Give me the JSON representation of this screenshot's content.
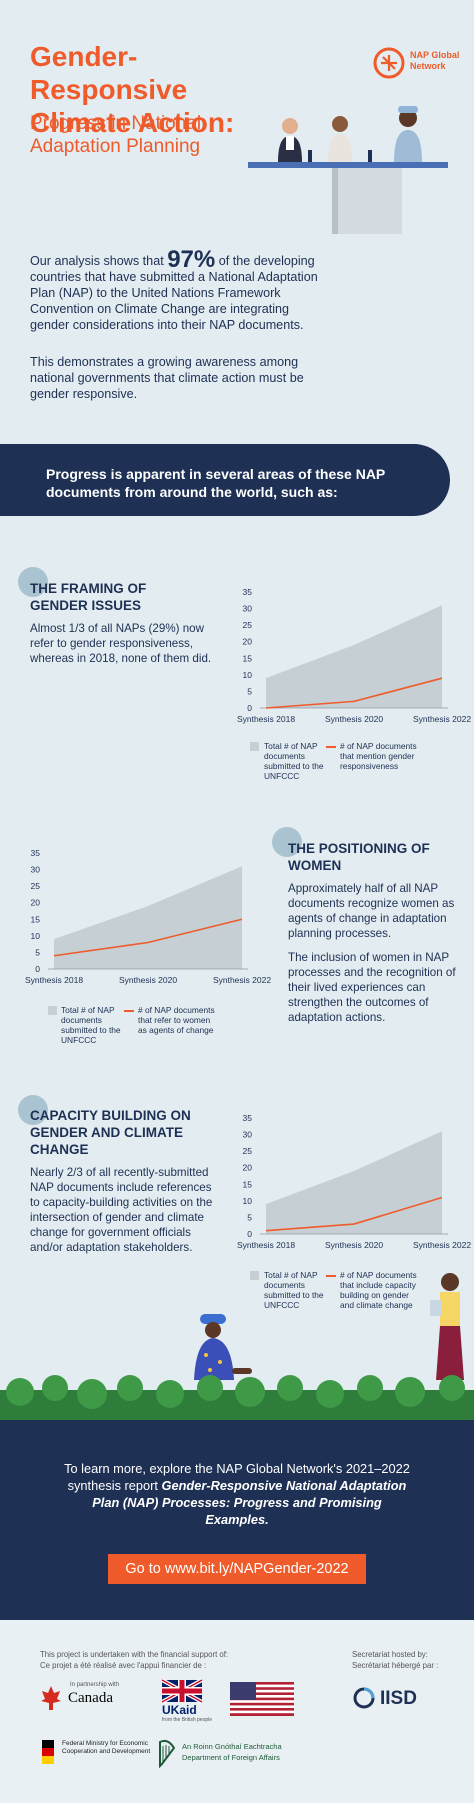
{
  "header": {
    "title": "Gender-Responsive Climate Action:",
    "subtitle": "Progress in National Adaptation Planning",
    "logo_text": "NAP Global Network"
  },
  "intro": {
    "pre": "Our analysis shows that",
    "stat": "97%",
    "post": "of the developing countries that have submitted a National Adaptation Plan (NAP) to the United Nations Framework Convention on Climate Change are integrating gender considerations into their NAP documents.",
    "para2": "This demonstrates a growing awareness among national governments that climate action must be gender responsive."
  },
  "banner": {
    "text": "Progress is apparent in several areas of these NAP documents from around the world, such as:"
  },
  "sections": [
    {
      "title": "THE FRAMING OF GENDER ISSUES",
      "body": "Almost 1/3 of all NAPs (29%) now refer to gender responsiveness, whereas in 2018, none of them did.",
      "body2": ""
    },
    {
      "title": "THE POSITIONING OF WOMEN",
      "body": "Approximately half of all NAP documents recognize women as agents of change in adaptation planning processes.",
      "body2": "The inclusion of women in NAP processes and the recognition of their lived experiences can strengthen the outcomes of adaptation actions."
    },
    {
      "title": "CAPACITY BUILDING ON GENDER AND CLIMATE CHANGE",
      "body": "Nearly 2/3 of all recently-submitted NAP documents include references to capacity-building activities on the intersection of gender and climate change for government officials and/or adaptation stakeholders.",
      "body2": ""
    }
  ],
  "chart_data": [
    {
      "type": "area",
      "categories": [
        "Synthesis 2018",
        "Synthesis 2020",
        "Synthesis 2022"
      ],
      "ylim": [
        0,
        35
      ],
      "yticks": [
        "0",
        "5",
        "10",
        "15",
        "20",
        "25",
        "30",
        "35"
      ],
      "series": [
        {
          "name": "Total # of NAP documents submitted to the UNFCCC",
          "values": [
            9,
            19,
            31
          ],
          "color": "#c6cfd3"
        },
        {
          "name": "# of NAP documents that mention gender responsiveness",
          "values": [
            0,
            2,
            9
          ],
          "color": "#ef5b2b"
        }
      ]
    },
    {
      "type": "area",
      "categories": [
        "Synthesis 2018",
        "Synthesis 2020",
        "Synthesis 2022"
      ],
      "ylim": [
        0,
        35
      ],
      "yticks": [
        "0",
        "5",
        "10",
        "15",
        "20",
        "25",
        "30",
        "35"
      ],
      "series": [
        {
          "name": "Total # of NAP documents submitted to the UNFCCC",
          "values": [
            9,
            19,
            31
          ],
          "color": "#c6cfd3"
        },
        {
          "name": "# of NAP documents that refer to women as agents of change",
          "values": [
            4,
            8,
            15
          ],
          "color": "#ef5b2b"
        }
      ]
    },
    {
      "type": "area",
      "categories": [
        "Synthesis 2018",
        "Synthesis 2020",
        "Synthesis 2022"
      ],
      "ylim": [
        0,
        35
      ],
      "yticks": [
        "0",
        "5",
        "10",
        "15",
        "20",
        "25",
        "30",
        "35"
      ],
      "series": [
        {
          "name": "Total # of NAP documents submitted to the UNFCCC",
          "values": [
            9,
            19,
            31
          ],
          "color": "#c6cfd3"
        },
        {
          "name": "# of NAP documents that include capacity building on gender and climate change",
          "values": [
            1,
            3,
            11
          ],
          "color": "#ef5b2b"
        }
      ]
    }
  ],
  "cta": {
    "pre": "To learn more, explore the NAP Global Network's 2021–2022 synthesis report",
    "report": "Gender-Responsive National Adaptation Plan (NAP) Processes: Progress and Promising Examples.",
    "button": "Go to www.bit.ly/NAPGender-2022"
  },
  "funders": {
    "note_en": "This project is undertaken with the financial support of:",
    "note_fr": "Ce projet a été réalisé avec l'appui financier de :",
    "secretariat_en": "Secretariat hosted by:",
    "secretariat_fr": "Secrétariat hébergé par :",
    "canada": "Canada",
    "canada_partner": "In partnership with",
    "ukaid": "UKaid",
    "ukaid_sub": "from the British people",
    "iisd": "IISD",
    "bmz": "Federal Ministry for Economic Cooperation and Development",
    "ireland_ga": "An Roinn Gnóthaí Eachtracha",
    "ireland_en": "Department of Foreign Affairs"
  },
  "colors": {
    "navy": "#1e3054",
    "orange": "#ef5b2b",
    "background": "#e3ecf0",
    "area": "#c6cfd3"
  }
}
